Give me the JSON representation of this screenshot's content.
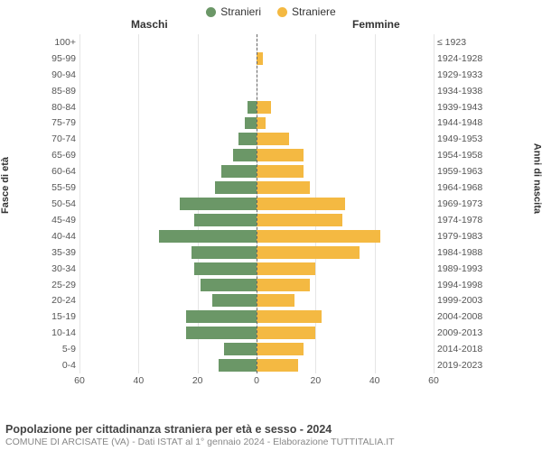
{
  "legend": {
    "male": {
      "label": "Stranieri",
      "color": "#6b9767"
    },
    "female": {
      "label": "Straniere",
      "color": "#f4b942"
    }
  },
  "headers": {
    "male": "Maschi",
    "female": "Femmine"
  },
  "axis_labels": {
    "left": "Fasce di età",
    "right": "Anni di nascita"
  },
  "chart": {
    "type": "population-pyramid",
    "xmax": 60,
    "xticks": [
      60,
      40,
      20,
      0,
      20,
      40,
      60
    ],
    "background_color": "#ffffff",
    "grid_color": "#e5e5e5",
    "center_line_color": "#666666",
    "bar_height_ratio": 0.78,
    "label_fontsize": 10.5,
    "label_color": "#555555",
    "rows": [
      {
        "age": "100+",
        "birth": "≤ 1923",
        "m": 0,
        "f": 0
      },
      {
        "age": "95-99",
        "birth": "1924-1928",
        "m": 0,
        "f": 2
      },
      {
        "age": "90-94",
        "birth": "1929-1933",
        "m": 0,
        "f": 0
      },
      {
        "age": "85-89",
        "birth": "1934-1938",
        "m": 0,
        "f": 0
      },
      {
        "age": "80-84",
        "birth": "1939-1943",
        "m": 3,
        "f": 5
      },
      {
        "age": "75-79",
        "birth": "1944-1948",
        "m": 4,
        "f": 3
      },
      {
        "age": "70-74",
        "birth": "1949-1953",
        "m": 6,
        "f": 11
      },
      {
        "age": "65-69",
        "birth": "1954-1958",
        "m": 8,
        "f": 16
      },
      {
        "age": "60-64",
        "birth": "1959-1963",
        "m": 12,
        "f": 16
      },
      {
        "age": "55-59",
        "birth": "1964-1968",
        "m": 14,
        "f": 18
      },
      {
        "age": "50-54",
        "birth": "1969-1973",
        "m": 26,
        "f": 30
      },
      {
        "age": "45-49",
        "birth": "1974-1978",
        "m": 21,
        "f": 29
      },
      {
        "age": "40-44",
        "birth": "1979-1983",
        "m": 33,
        "f": 42
      },
      {
        "age": "35-39",
        "birth": "1984-1988",
        "m": 22,
        "f": 35
      },
      {
        "age": "30-34",
        "birth": "1989-1993",
        "m": 21,
        "f": 20
      },
      {
        "age": "25-29",
        "birth": "1994-1998",
        "m": 19,
        "f": 18
      },
      {
        "age": "20-24",
        "birth": "1999-2003",
        "m": 15,
        "f": 13
      },
      {
        "age": "15-19",
        "birth": "2004-2008",
        "m": 24,
        "f": 22
      },
      {
        "age": "10-14",
        "birth": "2009-2013",
        "m": 24,
        "f": 20
      },
      {
        "age": "5-9",
        "birth": "2014-2018",
        "m": 11,
        "f": 16
      },
      {
        "age": "0-4",
        "birth": "2019-2023",
        "m": 13,
        "f": 14
      }
    ]
  },
  "footer": {
    "title": "Popolazione per cittadinanza straniera per età e sesso - 2024",
    "subtitle": "COMUNE DI ARCISATE (VA) - Dati ISTAT al 1° gennaio 2024 - Elaborazione TUTTITALIA.IT"
  }
}
